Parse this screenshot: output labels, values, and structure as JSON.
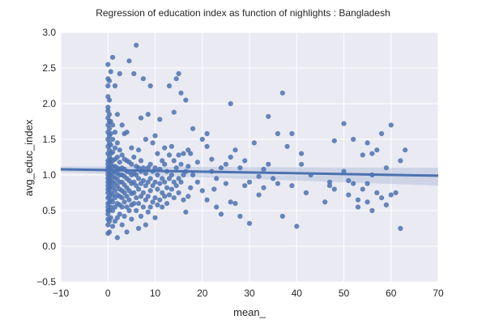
{
  "chart_data": {
    "type": "scatter",
    "title": "Regression of education index as function of nighlights : Bangladesh",
    "xlabel": "mean_",
    "ylabel": "avg_educ_index",
    "xlim": [
      -10,
      70
    ],
    "ylim": [
      -0.5,
      3.0
    ],
    "xticks": [
      -10,
      0,
      10,
      20,
      30,
      40,
      50,
      60,
      70
    ],
    "yticks": [
      -0.5,
      0.0,
      0.5,
      1.0,
      1.5,
      2.0,
      2.5,
      3.0
    ],
    "xtick_labels": [
      "−10",
      "0",
      "10",
      "20",
      "30",
      "40",
      "50",
      "60",
      "70"
    ],
    "ytick_labels": [
      "−0.5",
      "0.0",
      "0.5",
      "1.0",
      "1.5",
      "2.0",
      "2.5",
      "3.0"
    ],
    "grid": true,
    "style": "seaborn-darkgrid",
    "colors": {
      "background": "#eaeaf2",
      "grid": "#ffffff",
      "points": "#4c72b0",
      "line": "#4c72b0",
      "band": "#4c72b0"
    },
    "regression": {
      "x_range": [
        -10,
        70
      ],
      "y_at_xmin": 1.08,
      "y_at_xmax": 0.99,
      "ci_at_xmin": [
        1.04,
        1.12
      ],
      "ci_at_xmax": [
        0.85,
        1.1
      ]
    },
    "points": {
      "x": [
        0.0,
        0.0,
        0.0,
        0.0,
        0.0,
        0.0,
        0.0,
        0.0,
        0.0,
        0.0,
        0.0,
        0.0,
        0.0,
        0.0,
        0.0,
        0.0,
        0.0,
        0.0,
        0.0,
        0.0,
        0.0,
        0.0,
        0.0,
        0.0,
        0.0,
        0.0,
        0.0,
        0.0,
        0.0,
        0.0,
        0.3,
        0.3,
        0.3,
        0.3,
        0.3,
        0.3,
        0.3,
        0.3,
        0.3,
        0.3,
        0.3,
        0.3,
        0.3,
        0.3,
        0.3,
        0.3,
        0.3,
        0.3,
        0.3,
        0.3,
        0.6,
        0.6,
        0.6,
        0.6,
        0.6,
        0.6,
        0.6,
        0.6,
        0.6,
        0.6,
        0.6,
        0.6,
        0.6,
        0.6,
        0.6,
        1.0,
        1.0,
        1.0,
        1.0,
        1.0,
        1.0,
        1.0,
        1.0,
        1.0,
        1.0,
        1.0,
        1.0,
        1.0,
        1.0,
        1.5,
        1.5,
        1.5,
        1.5,
        1.5,
        1.5,
        1.5,
        1.5,
        1.5,
        1.5,
        1.5,
        1.5,
        2.0,
        2.0,
        2.0,
        2.0,
        2.0,
        2.0,
        2.0,
        2.0,
        2.0,
        2.0,
        2.0,
        2.5,
        2.5,
        2.5,
        2.5,
        2.5,
        2.5,
        2.5,
        2.5,
        2.5,
        2.5,
        3.0,
        3.0,
        3.0,
        3.0,
        3.0,
        3.0,
        3.0,
        3.0,
        3.0,
        3.5,
        3.5,
        3.5,
        3.5,
        3.5,
        3.5,
        3.5,
        3.5,
        4.0,
        4.0,
        4.0,
        4.0,
        4.0,
        4.0,
        4.0,
        4.0,
        4.5,
        4.5,
        4.5,
        4.5,
        4.5,
        4.5,
        4.5,
        5.0,
        5.0,
        5.0,
        5.0,
        5.0,
        5.0,
        5.0,
        5.5,
        5.5,
        5.5,
        5.5,
        5.5,
        5.5,
        6.0,
        6.0,
        6.0,
        6.0,
        6.0,
        6.0,
        6.5,
        6.5,
        6.5,
        6.5,
        6.5,
        6.5,
        7.0,
        7.0,
        7.0,
        7.0,
        7.0,
        7.0,
        7.5,
        7.5,
        7.5,
        7.5,
        7.5,
        8.0,
        8.0,
        8.0,
        8.0,
        8.0,
        8.5,
        8.5,
        8.5,
        8.5,
        8.5,
        9.0,
        9.0,
        9.0,
        9.0,
        9.0,
        9.5,
        9.5,
        9.5,
        9.5,
        10.0,
        10.0,
        10.0,
        10.0,
        10.0,
        10.5,
        10.5,
        10.5,
        10.5,
        11.0,
        11.0,
        11.0,
        11.0,
        11.5,
        11.5,
        11.5,
        11.5,
        12.0,
        12.0,
        12.0,
        12.0,
        12.5,
        12.5,
        12.5,
        13.0,
        13.0,
        13.0,
        13.0,
        13.5,
        13.5,
        13.5,
        14.0,
        14.0,
        14.0,
        14.0,
        14.5,
        14.5,
        14.5,
        15.0,
        15.0,
        15.0,
        15.0,
        15.5,
        15.5,
        15.5,
        16.0,
        16.0,
        16.0,
        16.5,
        16.5,
        16.5,
        17.0,
        17.0,
        17.0,
        17.5,
        17.5,
        18.0,
        18.0,
        19.0,
        19.0,
        20.0,
        20.0,
        21.0,
        21.0,
        21.0,
        22.0,
        22.0,
        22.5,
        23.0,
        23.0,
        24.0,
        24.0,
        25.0,
        25.0,
        26.0,
        26.0,
        26.0,
        27.0,
        27.0,
        28.0,
        28.0,
        29.0,
        29.0,
        30.0,
        30.0,
        31.0,
        32.0,
        32.0,
        33.0,
        33.0,
        34.0,
        34.0,
        35.0,
        36.0,
        36.0,
        37.0,
        37.0,
        38.0,
        39.0,
        39.0,
        40.0,
        41.0,
        41.0,
        42.0,
        43.0,
        46.0,
        47.0,
        47.0,
        48.0,
        48.0,
        50.0,
        50.0,
        51.0,
        51.0,
        52.0,
        52.0,
        53.0,
        53.0,
        54.0,
        54.0,
        55.0,
        55.0,
        55.0,
        56.0,
        56.0,
        56.0,
        57.0,
        57.0,
        58.0,
        58.0,
        59.0,
        59.0,
        60.0,
        60.0,
        61.0,
        62.0,
        62.0,
        63.0
      ],
      "y": [
        0.18,
        0.3,
        0.38,
        0.45,
        0.5,
        0.55,
        0.6,
        0.68,
        0.75,
        0.8,
        0.85,
        0.9,
        0.95,
        1.0,
        1.05,
        1.1,
        1.15,
        1.2,
        1.3,
        1.4,
        1.5,
        1.6,
        1.7,
        1.8,
        1.9,
        1.95,
        2.1,
        2.25,
        2.35,
        2.55,
        0.2,
        0.35,
        0.5,
        0.62,
        0.7,
        0.8,
        0.88,
        0.95,
        1.02,
        1.1,
        1.18,
        1.25,
        1.35,
        1.45,
        1.55,
        1.65,
        1.75,
        1.85,
        2.05,
        2.32,
        0.4,
        0.55,
        0.65,
        0.75,
        0.85,
        0.92,
        1.0,
        1.08,
        1.15,
        1.22,
        1.3,
        1.42,
        1.58,
        1.75,
        2.45,
        0.28,
        0.5,
        0.62,
        0.72,
        0.82,
        0.9,
        0.98,
        1.05,
        1.12,
        1.2,
        1.32,
        1.5,
        1.7,
        2.65,
        0.35,
        0.55,
        0.68,
        0.78,
        0.88,
        0.96,
        1.04,
        1.12,
        1.22,
        1.38,
        1.6,
        2.25,
        0.12,
        0.4,
        0.6,
        0.72,
        0.84,
        0.94,
        1.02,
        1.1,
        1.25,
        1.45,
        1.85,
        0.45,
        0.58,
        0.7,
        0.8,
        0.9,
        1.0,
        1.08,
        1.18,
        1.35,
        2.42,
        0.3,
        0.55,
        0.68,
        0.78,
        0.9,
        1.0,
        1.1,
        1.28,
        1.7,
        0.42,
        0.62,
        0.75,
        0.86,
        0.98,
        1.08,
        1.22,
        1.58,
        0.2,
        0.55,
        0.7,
        0.82,
        0.95,
        1.05,
        1.2,
        1.6,
        0.5,
        0.65,
        0.78,
        0.92,
        1.04,
        1.18,
        2.6,
        0.38,
        0.58,
        0.74,
        0.88,
        1.0,
        1.15,
        1.38,
        0.6,
        0.75,
        0.9,
        1.02,
        1.25,
        2.42,
        0.5,
        0.68,
        0.85,
        1.0,
        1.12,
        2.82,
        0.25,
        0.6,
        0.8,
        0.95,
        1.1,
        1.35,
        0.42,
        0.7,
        0.88,
        1.05,
        1.2,
        1.8,
        0.55,
        0.75,
        0.92,
        1.1,
        2.35,
        0.3,
        0.65,
        0.85,
        1.02,
        1.5,
        0.48,
        0.7,
        0.9,
        1.1,
        1.85,
        0.55,
        0.78,
        0.95,
        1.15,
        2.25,
        0.62,
        0.85,
        1.05,
        1.45,
        0.4,
        0.68,
        0.9,
        1.1,
        1.55,
        0.58,
        0.8,
        1.0,
        1.3,
        0.65,
        0.88,
        1.08,
        1.78,
        0.55,
        0.75,
        0.95,
        1.2,
        0.7,
        0.9,
        1.15,
        1.38,
        0.6,
        0.82,
        1.05,
        0.72,
        0.95,
        1.28,
        2.25,
        0.8,
        1.0,
        1.4,
        0.68,
        0.9,
        1.2,
        1.88,
        0.85,
        1.1,
        2.35,
        0.75,
        0.95,
        1.28,
        2.42,
        0.9,
        1.15,
        2.15,
        0.65,
        1.0,
        1.3,
        0.48,
        1.05,
        2.05,
        0.7,
        1.12,
        1.35,
        0.82,
        1.3,
        1.0,
        1.65,
        0.9,
        1.18,
        0.78,
        1.5,
        0.65,
        1.4,
        1.58,
        1.05,
        1.22,
        0.8,
        0.55,
        0.95,
        0.45,
        1.1,
        0.88,
        1.15,
        0.62,
        2.0,
        1.25,
        0.6,
        1.35,
        0.42,
        1.1,
        0.85,
        1.2,
        0.32,
        0.9,
        1.45,
        0.72,
        0.98,
        0.82,
        1.08,
        1.15,
        1.82,
        0.95,
        1.58,
        0.88,
        0.42,
        2.15,
        1.4,
        1.58,
        0.85,
        0.28,
        1.3,
        1.15,
        0.75,
        1.0,
        0.62,
        0.85,
        0.9,
        0.8,
        1.48,
        1.72,
        1.05,
        0.92,
        0.72,
        0.88,
        1.5,
        0.65,
        0.55,
        0.8,
        1.28,
        0.62,
        1.45,
        0.88,
        0.5,
        1.0,
        1.3,
        0.75,
        1.35,
        0.68,
        1.58,
        0.58,
        1.1,
        0.72,
        1.7,
        0.75,
        0.25,
        1.2,
        1.35
      ]
    }
  }
}
